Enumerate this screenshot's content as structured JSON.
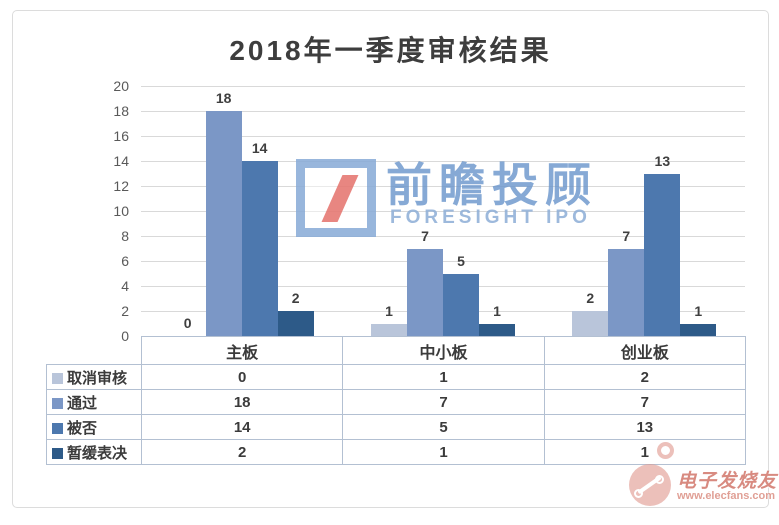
{
  "chart_data": {
    "type": "bar",
    "title": "2018年一季度审核结果",
    "categories": [
      "主板",
      "中小板",
      "创业板"
    ],
    "series": [
      {
        "name": "取消审核",
        "color": "#b9c5da",
        "values": [
          0,
          1,
          2
        ]
      },
      {
        "name": "通过",
        "color": "#7b97c6",
        "values": [
          18,
          7,
          7
        ]
      },
      {
        "name": "被否",
        "color": "#4d78ae",
        "values": [
          14,
          5,
          13
        ]
      },
      {
        "name": "暂缓表决",
        "color": "#2d5a88",
        "values": [
          2,
          1,
          1
        ]
      }
    ],
    "xlabel": "",
    "ylabel": "",
    "ylim": [
      0,
      20
    ],
    "ytick_step": 2,
    "grid": true,
    "data_labels": true,
    "legend_position": "data-table-left"
  },
  "watermark_center": {
    "logo": "foresight-logo",
    "brand_cn": "前瞻投顾",
    "brand_en": "FORESIGHT IPO"
  },
  "watermark_corner": {
    "brand_cn": "电子发烧友",
    "url": "www.elecfans.com"
  },
  "colors": {
    "gridline": "#d9d9d9",
    "table_border": "#b3c0d2",
    "text": "#3f3f3f",
    "tick_text": "#595959"
  }
}
